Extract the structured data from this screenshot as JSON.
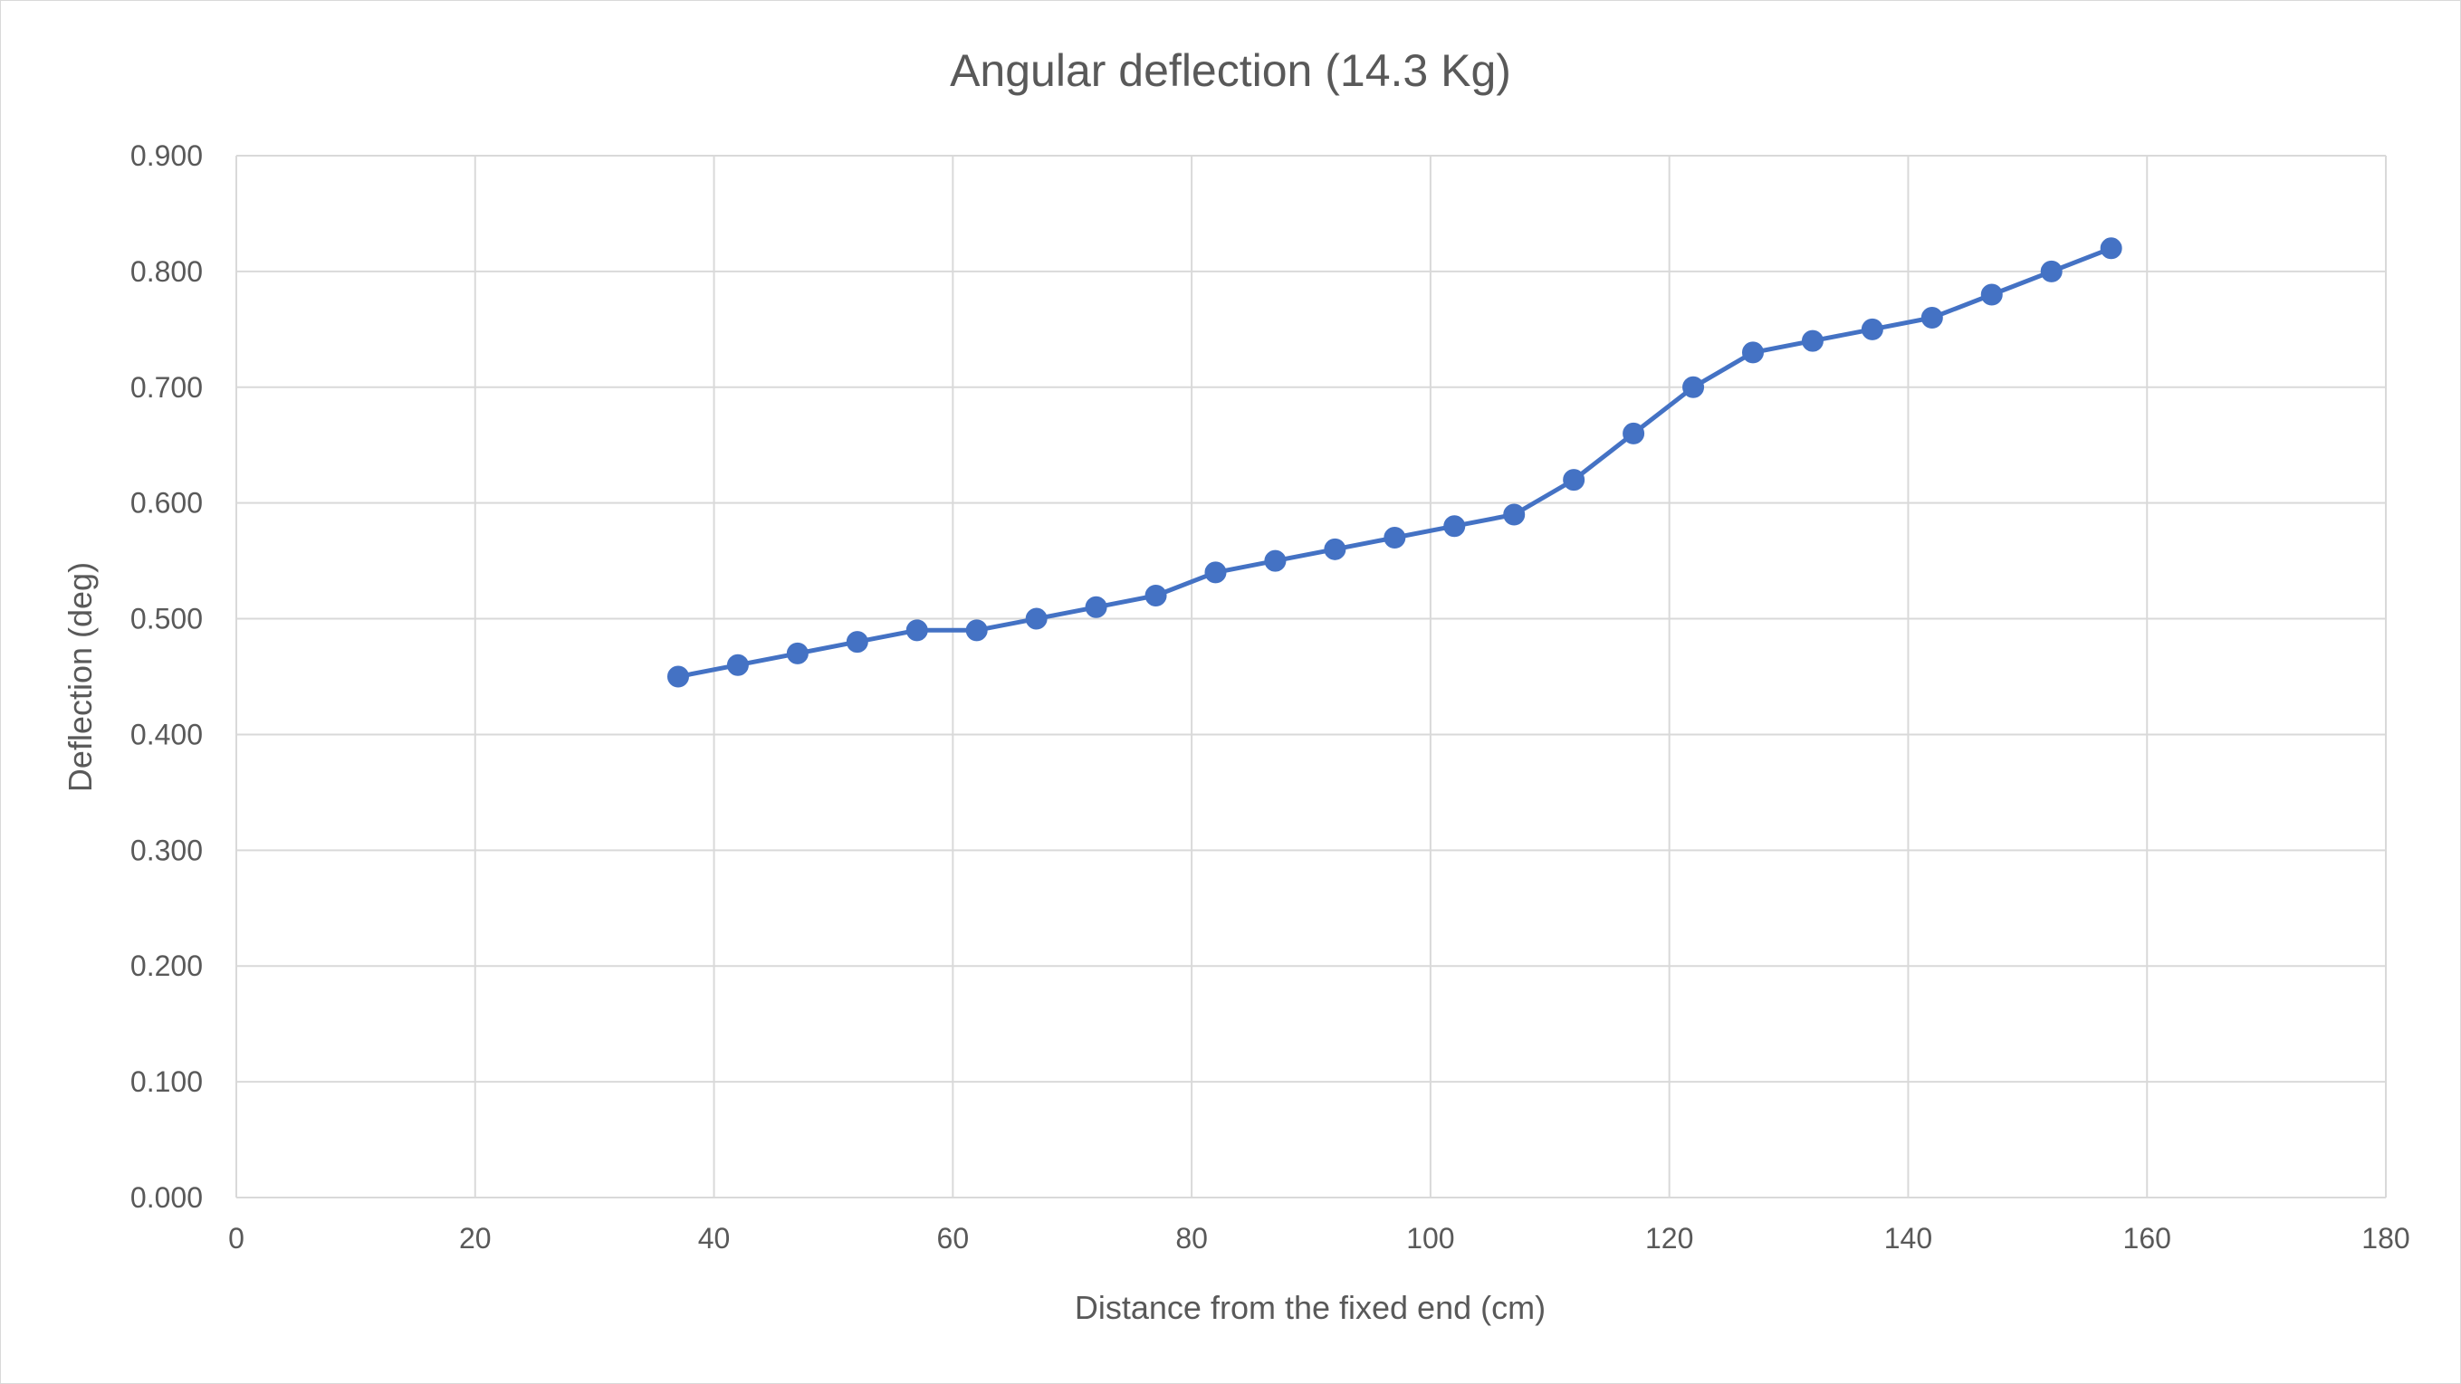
{
  "chart_data": {
    "type": "line",
    "title": "Angular deflection (14.3 Kg)",
    "xlabel": "Distance from the fixed end (cm)",
    "ylabel": "Deflection (deg)",
    "xlim": [
      0,
      180
    ],
    "ylim": [
      0,
      0.9
    ],
    "x_ticks": [
      "0",
      "20",
      "40",
      "60",
      "80",
      "100",
      "120",
      "140",
      "160",
      "180"
    ],
    "y_ticks": [
      "0.000",
      "0.100",
      "0.200",
      "0.300",
      "0.400",
      "0.500",
      "0.600",
      "0.700",
      "0.800",
      "0.900"
    ],
    "grid": true,
    "legend": "none",
    "series_color": "#4472c4",
    "grid_color": "#d9d9d9",
    "text_color": "#595959",
    "series": [
      {
        "x": [
          37,
          42,
          47,
          52,
          57,
          62,
          67,
          72,
          77,
          82,
          87,
          92,
          97,
          102,
          107,
          112,
          117,
          122,
          127,
          132,
          137,
          142,
          147,
          152,
          157
        ],
        "values": [
          0.45,
          0.46,
          0.47,
          0.48,
          0.49,
          0.49,
          0.5,
          0.51,
          0.52,
          0.54,
          0.55,
          0.56,
          0.57,
          0.58,
          0.59,
          0.62,
          0.66,
          0.7,
          0.73,
          0.74,
          0.75,
          0.76,
          0.78,
          0.8,
          0.82
        ]
      }
    ]
  }
}
